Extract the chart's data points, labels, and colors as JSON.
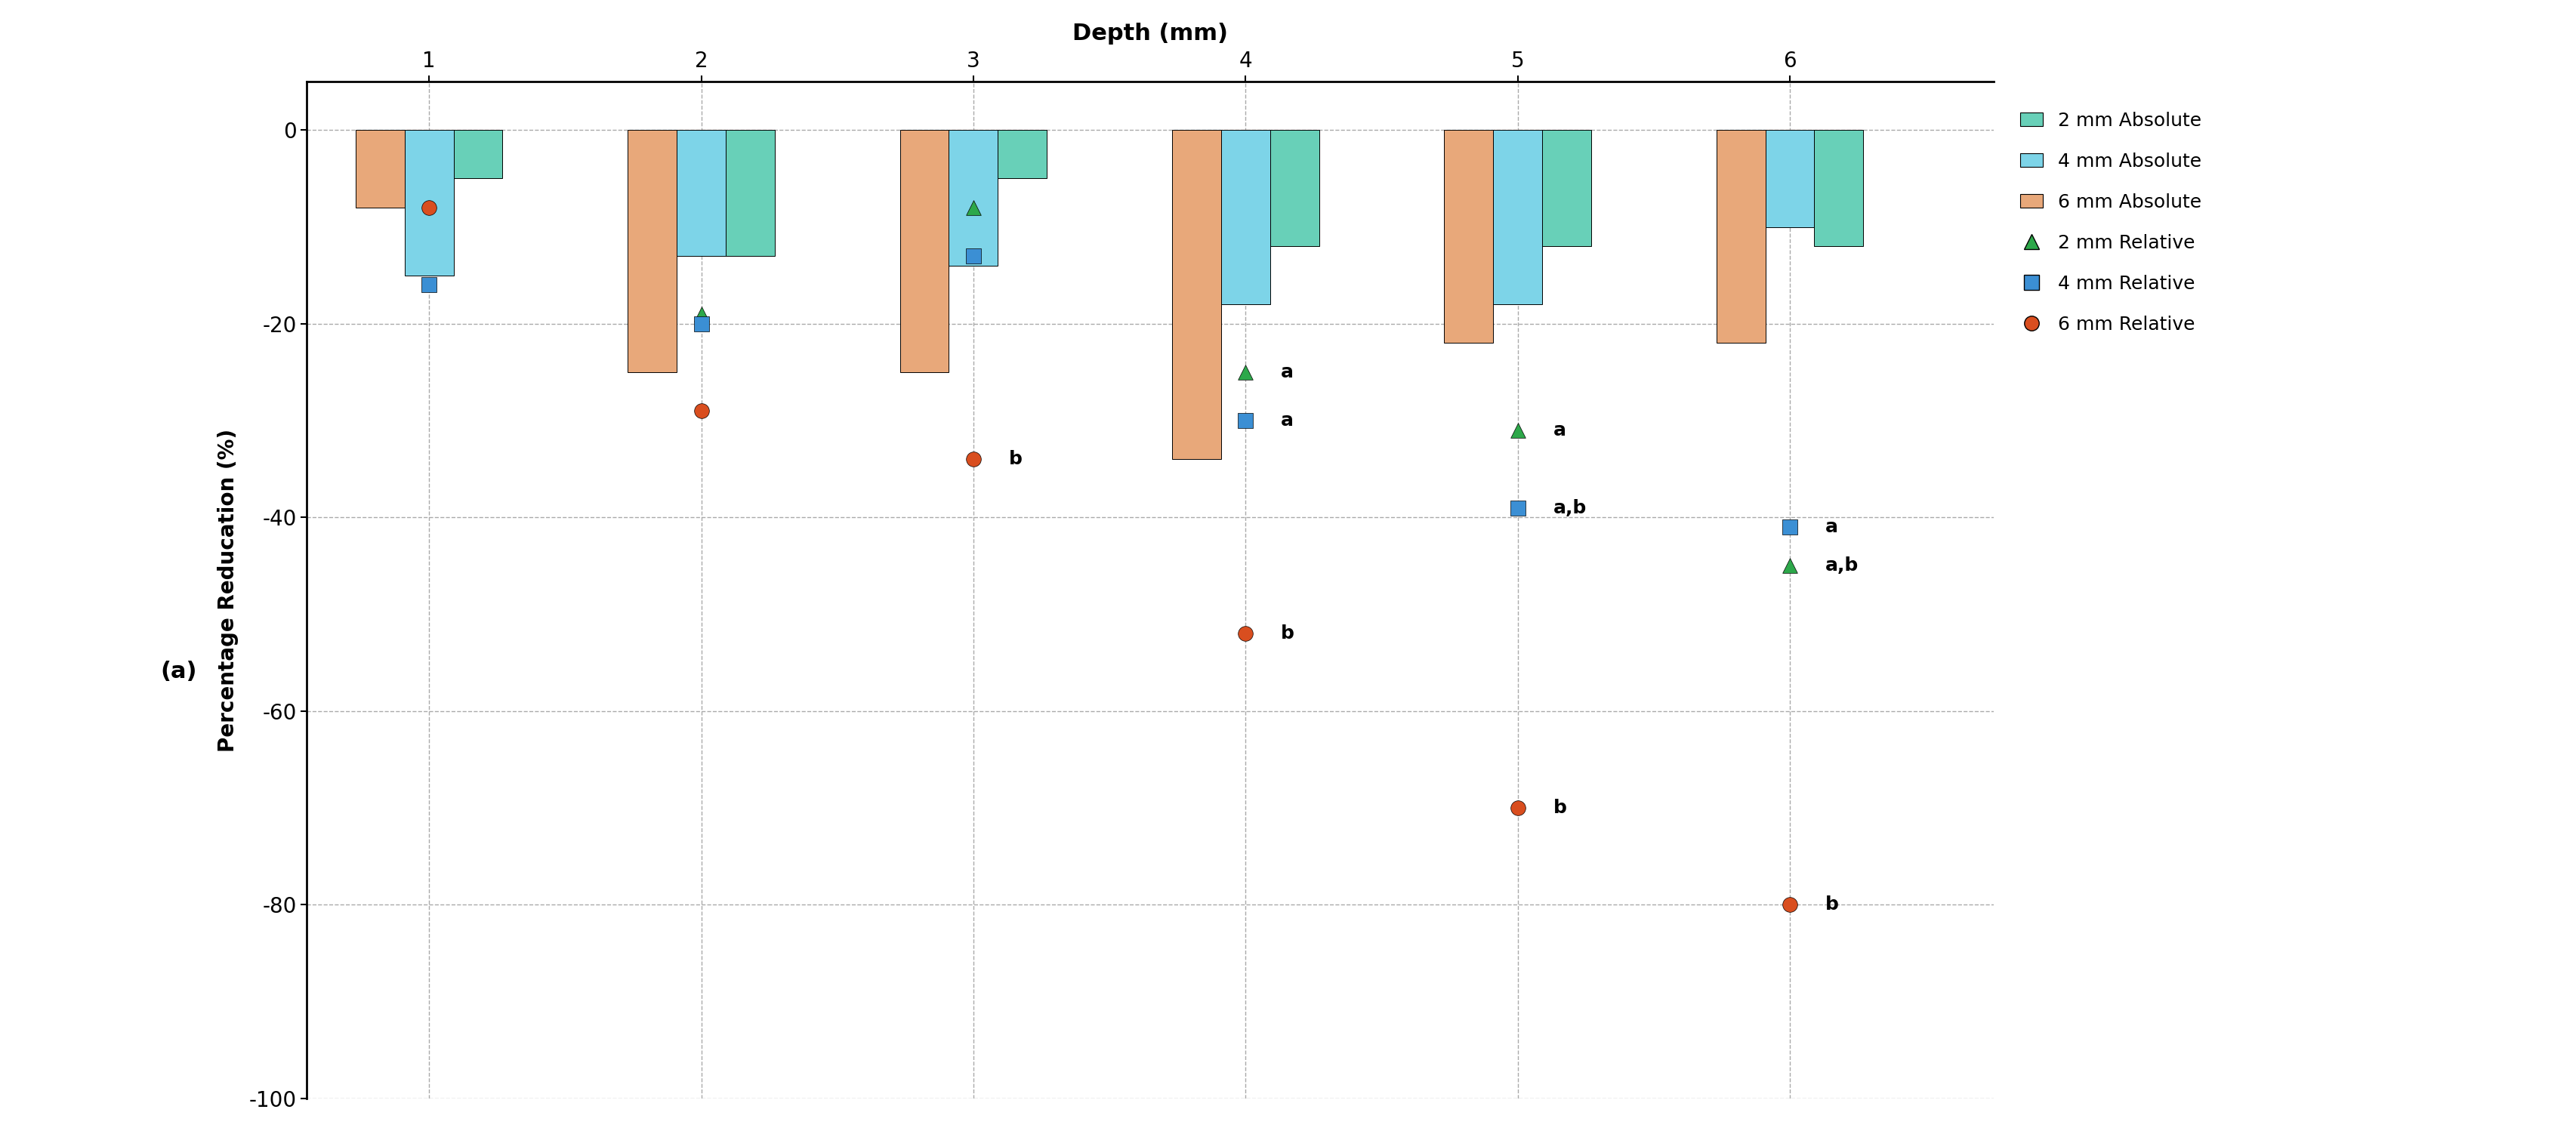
{
  "title": "Depth (mm)",
  "ylabel": "Percentage Reducation (%)",
  "label_a": "(a)",
  "x_positions": [
    1,
    2,
    3,
    4,
    5,
    6
  ],
  "x_labels": [
    "1",
    "2",
    "3",
    "4",
    "5",
    "6"
  ],
  "ylim": [
    -100,
    5
  ],
  "yticks": [
    0,
    -20,
    -40,
    -60,
    -80,
    -100
  ],
  "bar_2mm": [
    -5,
    -13,
    -5,
    -12,
    -12,
    -12
  ],
  "bar_4mm": [
    -15,
    -13,
    -14,
    -18,
    -18,
    -10
  ],
  "bar_6mm": [
    -8,
    -25,
    -25,
    -34,
    -22,
    -22
  ],
  "color_2mm_abs": "#68d0b8",
  "color_4mm_abs": "#7dd4e8",
  "color_6mm_abs": "#e8a87a",
  "tri_2mm": [
    null,
    -19,
    -8,
    -25,
    -31,
    -45
  ],
  "sq_4mm": [
    -16,
    -20,
    -13,
    -30,
    -39,
    -41
  ],
  "circ_6mm": [
    -8,
    -29,
    -34,
    -52,
    -70,
    -80
  ],
  "color_tri": "#2da84a",
  "color_sq": "#3b8fd4",
  "color_circ": "#d94e1f",
  "annotations": {
    "tri_labels": [
      null,
      null,
      null,
      "a",
      "a",
      "a,b"
    ],
    "sq_labels": [
      null,
      null,
      null,
      "a",
      "a,b",
      "a"
    ],
    "circ_labels": [
      null,
      null,
      "b",
      "b",
      "b",
      "b"
    ]
  },
  "bar_width": 0.18,
  "bar_offsets": [
    0.18,
    0.0,
    -0.18
  ],
  "title_fontsize": 22,
  "label_fontsize": 20,
  "tick_fontsize": 20,
  "legend_fontsize": 18,
  "annot_fontsize": 18
}
